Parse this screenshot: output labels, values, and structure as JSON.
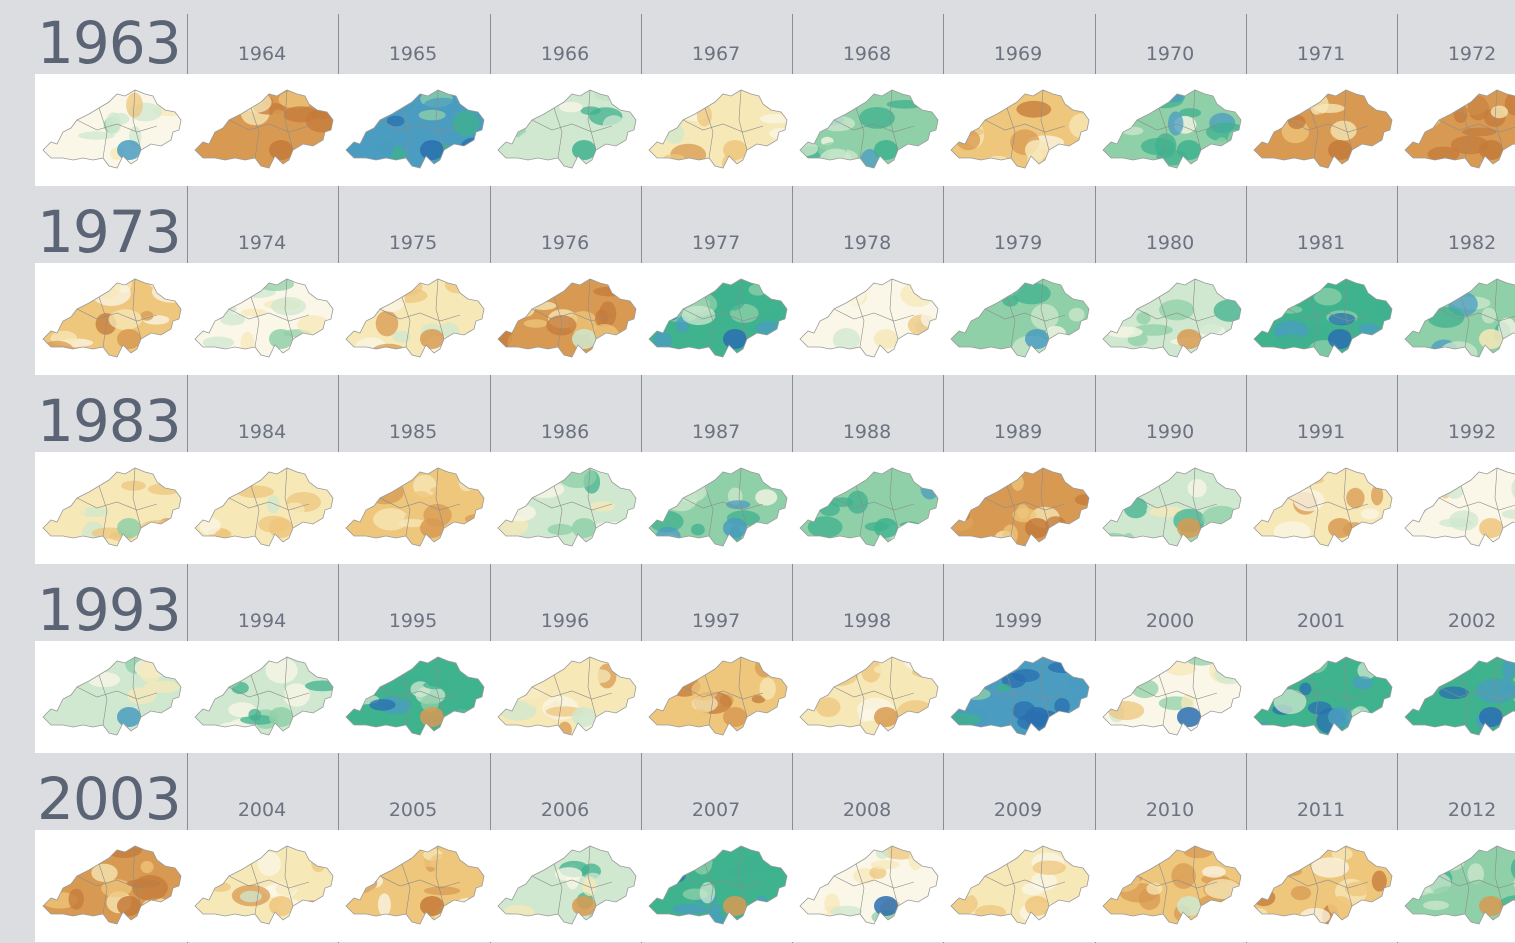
{
  "chart_data": {
    "type": "heatmap",
    "title": "",
    "description_units": "annual map panels, one per year; color ramp from brown (dry/low) through cream to green and blue (wet/high)",
    "color_scale": [
      "#c47a3a",
      "#d89a52",
      "#eec67c",
      "#f7e8b8",
      "#fbf7e8",
      "#cfe8cf",
      "#8fd0a8",
      "#3fb28e",
      "#4a9cc0",
      "#2a6fb0"
    ],
    "rows": [
      {
        "decade_label": "1963",
        "years": [
          {
            "year": "1963",
            "level": 4,
            "hot": 8
          },
          {
            "year": "1964",
            "level": 1,
            "hot": 0
          },
          {
            "year": "1965",
            "level": 8,
            "hot": 9
          },
          {
            "year": "1966",
            "level": 5,
            "hot": 7
          },
          {
            "year": "1967",
            "level": 3,
            "hot": 2
          },
          {
            "year": "1968",
            "level": 6,
            "hot": 7
          },
          {
            "year": "1969",
            "level": 2,
            "hot": 3
          },
          {
            "year": "1970",
            "level": 6,
            "hot": 7
          },
          {
            "year": "1971",
            "level": 1,
            "hot": 0
          },
          {
            "year": "1972",
            "level": 1,
            "hot": 0
          }
        ]
      },
      {
        "decade_label": "1973",
        "years": [
          {
            "year": "1973",
            "level": 2,
            "hot": 1
          },
          {
            "year": "1974",
            "level": 4,
            "hot": 6
          },
          {
            "year": "1975",
            "level": 3,
            "hot": 1
          },
          {
            "year": "1976",
            "level": 1,
            "hot": 5
          },
          {
            "year": "1977",
            "level": 7,
            "hot": 9
          },
          {
            "year": "1978",
            "level": 4,
            "hot": 3
          },
          {
            "year": "1979",
            "level": 6,
            "hot": 8
          },
          {
            "year": "1980",
            "level": 5,
            "hot": 1
          },
          {
            "year": "1981",
            "level": 7,
            "hot": 9
          },
          {
            "year": "1982",
            "level": 6,
            "hot": 3
          }
        ]
      },
      {
        "decade_label": "1983",
        "years": [
          {
            "year": "1983",
            "level": 3,
            "hot": 6
          },
          {
            "year": "1984",
            "level": 3,
            "hot": 2
          },
          {
            "year": "1985",
            "level": 2,
            "hot": 1
          },
          {
            "year": "1986",
            "level": 5,
            "hot": 6
          },
          {
            "year": "1987",
            "level": 6,
            "hot": 8
          },
          {
            "year": "1988",
            "level": 6,
            "hot": 7
          },
          {
            "year": "1989",
            "level": 1,
            "hot": 0
          },
          {
            "year": "1990",
            "level": 5,
            "hot": 1
          },
          {
            "year": "1991",
            "level": 3,
            "hot": 1
          },
          {
            "year": "1992",
            "level": 4,
            "hot": 2
          }
        ]
      },
      {
        "decade_label": "1993",
        "years": [
          {
            "year": "1993",
            "level": 5,
            "hot": 8
          },
          {
            "year": "1994",
            "level": 5,
            "hot": 6
          },
          {
            "year": "1995",
            "level": 7,
            "hot": 1
          },
          {
            "year": "1996",
            "level": 3,
            "hot": 5
          },
          {
            "year": "1997",
            "level": 2,
            "hot": 1
          },
          {
            "year": "1998",
            "level": 3,
            "hot": 1
          },
          {
            "year": "1999",
            "level": 8,
            "hot": 9
          },
          {
            "year": "2000",
            "level": 4,
            "hot": 9
          },
          {
            "year": "2001",
            "level": 7,
            "hot": 8
          },
          {
            "year": "2002",
            "level": 7,
            "hot": 9
          }
        ]
      },
      {
        "decade_label": "2003",
        "years": [
          {
            "year": "2003",
            "level": 1,
            "hot": 0
          },
          {
            "year": "2004",
            "level": 3,
            "hot": 2
          },
          {
            "year": "2005",
            "level": 2,
            "hot": 0
          },
          {
            "year": "2006",
            "level": 5,
            "hot": 1
          },
          {
            "year": "2007",
            "level": 7,
            "hot": 1
          },
          {
            "year": "2008",
            "level": 4,
            "hot": 9
          },
          {
            "year": "2009",
            "level": 3,
            "hot": 2
          },
          {
            "year": "2010",
            "level": 2,
            "hot": 5
          },
          {
            "year": "2011",
            "level": 2,
            "hot": 2
          },
          {
            "year": "2012",
            "level": 6,
            "hot": 1
          }
        ]
      }
    ]
  }
}
